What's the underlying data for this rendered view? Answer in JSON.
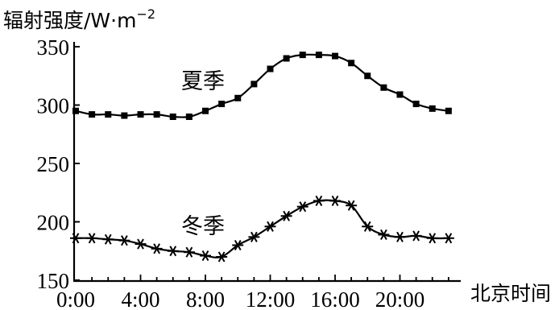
{
  "chart_data": {
    "type": "line",
    "title": "",
    "ylabel": "辐射强度/W·m",
    "ylabel_sup": "−2",
    "xlabel": "北京时间",
    "ylim": [
      150,
      350
    ],
    "xlim": [
      0,
      23.5
    ],
    "yticks": [
      150,
      200,
      250,
      300,
      350
    ],
    "yticklabels": [
      "150",
      "200",
      "250",
      "300",
      "350"
    ],
    "xticks": [
      0,
      4,
      8,
      12,
      16,
      20
    ],
    "xticklabels": [
      "0:00",
      "4:00",
      "8:00",
      "12:00",
      "16:00",
      "20:00"
    ],
    "grid": false,
    "legend": "none",
    "series": [
      {
        "name": "夏季",
        "marker": "square",
        "x": [
          0,
          1,
          2,
          3,
          4,
          5,
          6,
          7,
          8,
          9,
          10,
          11,
          12,
          13,
          14,
          15,
          16,
          17,
          18,
          19,
          20,
          21,
          22,
          23
        ],
        "values": [
          295,
          292,
          292,
          291,
          292,
          292,
          290,
          290,
          295,
          301,
          306,
          318,
          331,
          340,
          343,
          343,
          342,
          336,
          325,
          315,
          309,
          301,
          297,
          295
        ]
      },
      {
        "name": "冬季",
        "marker": "asterisk",
        "x": [
          0,
          1,
          2,
          3,
          4,
          5,
          6,
          7,
          8,
          9,
          10,
          11,
          12,
          13,
          14,
          15,
          16,
          17,
          18,
          19,
          20,
          21,
          22,
          23
        ],
        "values": [
          186,
          186,
          185,
          184,
          181,
          177,
          175,
          174,
          171,
          170,
          180,
          187,
          196,
          205,
          213,
          218,
          218,
          214,
          196,
          189,
          187,
          188,
          186,
          186
        ]
      }
    ]
  }
}
